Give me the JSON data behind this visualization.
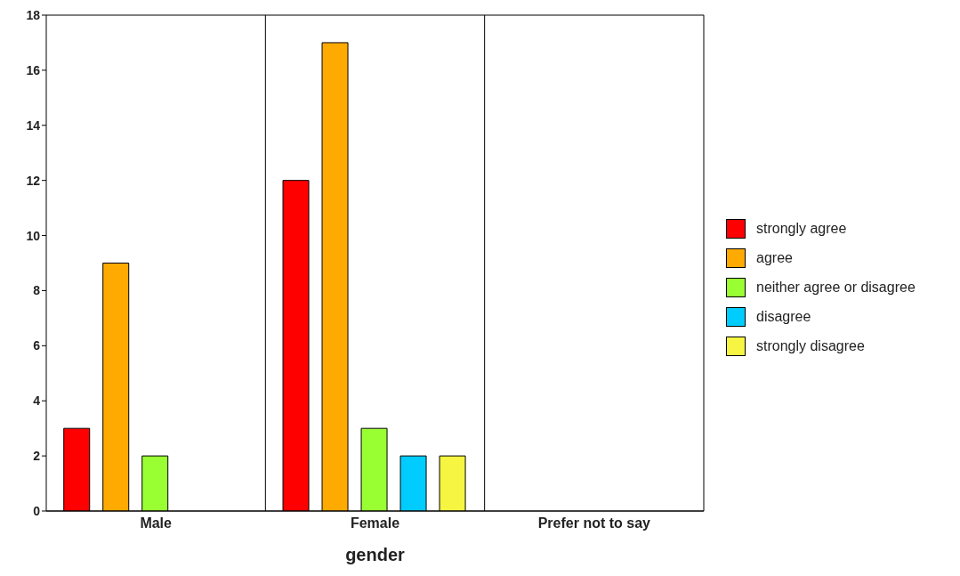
{
  "chart_data": {
    "type": "bar",
    "xlabel": "gender",
    "categories": [
      "Male",
      "Female",
      "Prefer not to say"
    ],
    "series": [
      {
        "name": "strongly agree",
        "color": "#ff0000",
        "values": [
          3,
          12,
          0
        ]
      },
      {
        "name": "agree",
        "color": "#ffaa00",
        "values": [
          9,
          17,
          0
        ]
      },
      {
        "name": "neither agree or disagree",
        "color": "#99ff33",
        "values": [
          2,
          3,
          0
        ]
      },
      {
        "name": "disagree",
        "color": "#00ccff",
        "values": [
          0,
          2,
          0
        ]
      },
      {
        "name": "strongly disagree",
        "color": "#f5f542",
        "values": [
          0,
          2,
          0
        ]
      }
    ],
    "ylim": [
      0,
      18
    ],
    "yticks": [
      0,
      2,
      4,
      6,
      8,
      10,
      12,
      14,
      16,
      18
    ],
    "grid": true,
    "legend": "right"
  }
}
